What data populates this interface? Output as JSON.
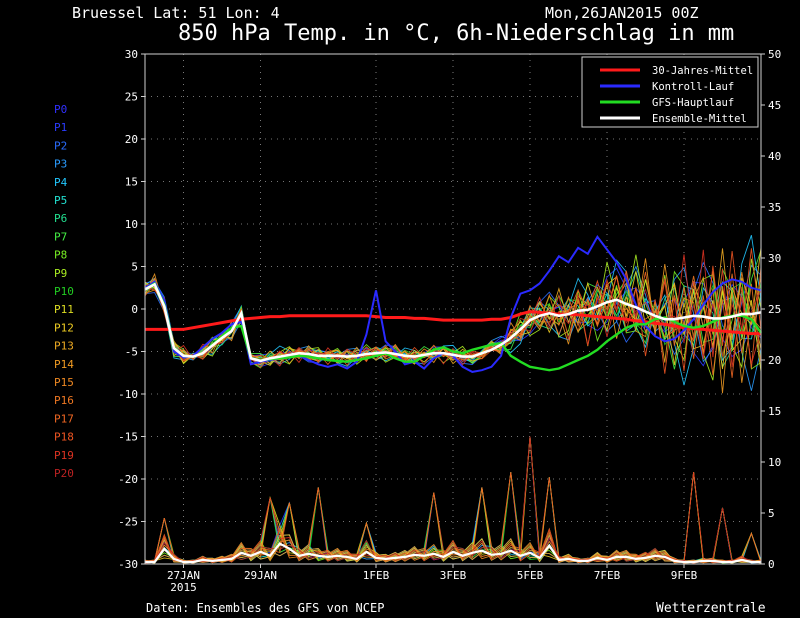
{
  "header": {
    "location": "Bruessel  Lat: 51 Lon: 4",
    "run": "Mon,26JAN2015 00Z",
    "title": "850 hPa Temp. in °C, 6h-Niederschlag in mm"
  },
  "footer": {
    "source": "Daten: Ensembles des GFS von NCEP",
    "brand": "Wetterzentrale"
  },
  "colors": {
    "background": "#000000",
    "grid": "#9a9a9a",
    "climatology": "#ff1a1a",
    "control": "#2a2aff",
    "operational": "#22dd22",
    "ensemble_mean": "#ffffff"
  },
  "chart_data": {
    "type": "line",
    "x_tick_labels": [
      "27JAN",
      "29JAN",
      "1FEB",
      "3FEB",
      "5FEB",
      "7FEB",
      "9FEB"
    ],
    "x_year_label": "2015",
    "x": [
      0,
      1,
      2,
      3,
      4,
      5,
      6,
      7,
      8,
      9,
      10,
      11,
      12,
      13,
      14,
      15,
      16,
      17,
      18,
      19,
      20,
      21,
      22,
      23,
      24,
      25,
      26,
      27,
      28,
      29,
      30,
      31,
      32,
      33,
      34,
      35,
      36,
      37,
      38,
      39,
      40,
      41,
      42,
      43,
      44,
      45,
      46,
      47,
      48,
      49,
      50,
      51,
      52,
      53,
      54,
      55,
      56,
      57,
      58,
      59,
      60,
      61,
      62,
      63,
      64
    ],
    "x_ticks": [
      4,
      12,
      24,
      32,
      40,
      48,
      56
    ],
    "xlim": [
      0,
      64
    ],
    "y_left": {
      "ticks": [
        30,
        25,
        20,
        15,
        10,
        5,
        0,
        -5,
        -10,
        -15,
        -20,
        -25,
        -30
      ],
      "ylim": [
        -30,
        30
      ],
      "unit": "°C"
    },
    "y_right": {
      "ticks": [
        50,
        45,
        40,
        35,
        30,
        25,
        20,
        15,
        10,
        5,
        0
      ],
      "ylim": [
        0,
        50
      ],
      "unit": "mm"
    },
    "grid": true,
    "legend_position": "top-right",
    "legend": [
      {
        "label": "30-Jahres-Mittel",
        "color_key": "climatology"
      },
      {
        "label": "Kontroll-Lauf",
        "color_key": "control"
      },
      {
        "label": "GFS-Hauptlauf",
        "color_key": "operational"
      },
      {
        "label": "Ensemble-Mittel",
        "color_key": "ensemble_mean"
      }
    ],
    "member_labels": [
      "P0",
      "P1",
      "P2",
      "P3",
      "P4",
      "P5",
      "P6",
      "P7",
      "P8",
      "P9",
      "P10",
      "P11",
      "P12",
      "P13",
      "P14",
      "P15",
      "P16",
      "P17",
      "P18",
      "P19",
      "P20"
    ],
    "member_colors": [
      "#3030ff",
      "#2a3cff",
      "#2a6cff",
      "#2a9cff",
      "#22c8ff",
      "#22e0d0",
      "#22e090",
      "#44ee44",
      "#77ee22",
      "#aaee22",
      "#22cc22",
      "#dddd22",
      "#eecc22",
      "#eeaa22",
      "#ee9922",
      "#ee8822",
      "#ee7722",
      "#ee6622",
      "#ee5522",
      "#dd3322",
      "#bb2222"
    ],
    "series": [
      {
        "name": "30-Jahres-Mittel",
        "color_key": "climatology",
        "values": [
          -2.4,
          -2.4,
          -2.4,
          -2.4,
          -2.4,
          -2.2,
          -2,
          -1.8,
          -1.6,
          -1.4,
          -1.2,
          -1.1,
          -1,
          -0.9,
          -0.9,
          -0.8,
          -0.8,
          -0.8,
          -0.8,
          -0.8,
          -0.8,
          -0.8,
          -0.8,
          -0.8,
          -0.9,
          -1,
          -1,
          -1,
          -1.1,
          -1.1,
          -1.2,
          -1.3,
          -1.3,
          -1.3,
          -1.3,
          -1.3,
          -1.2,
          -1.2,
          -1,
          -0.6,
          -0.3,
          -0.4,
          -0.5,
          -0.6,
          -0.6,
          -0.7,
          -0.8,
          -0.9,
          -1,
          -1.1,
          -1.2,
          -1.4,
          -1.5,
          -1.7,
          -1.8,
          -2,
          -2.2,
          -2.3,
          -2.4,
          -2.5,
          -2.6,
          -2.7,
          -2.8,
          -2.9,
          -2.9
        ]
      },
      {
        "name": "Kontroll-Lauf",
        "color_key": "control",
        "values": [
          2.5,
          3.2,
          1,
          -5,
          -5.7,
          -5.5,
          -4.5,
          -3.5,
          -2.8,
          -1.8,
          -1.5,
          -6.5,
          -6.2,
          -6,
          -5.8,
          -5.7,
          -5.5,
          -6,
          -6.5,
          -6.8,
          -6.5,
          -7,
          -6.2,
          -3,
          2.2,
          -3.8,
          -5,
          -6.5,
          -6.2,
          -7,
          -5.8,
          -5.2,
          -5.5,
          -6.8,
          -7.4,
          -7.2,
          -6.8,
          -5.5,
          -1,
          1.8,
          2.2,
          3,
          4.5,
          6.2,
          5.5,
          7.2,
          6.5,
          8.5,
          7,
          5.5,
          3.5,
          0.5,
          -2,
          -3.2,
          -3.8,
          -3.5,
          -2.5,
          -1.2,
          0.5,
          2,
          3,
          3.5,
          3.2,
          2.5,
          2.2
        ]
      },
      {
        "name": "GFS-Hauptlauf",
        "color_key": "operational",
        "values": [
          2.3,
          3,
          0.5,
          -4.5,
          -5.5,
          -5.6,
          -5.2,
          -4.2,
          -3.2,
          -2.2,
          -2,
          -5.8,
          -6,
          -5.9,
          -5.8,
          -5.7,
          -5.5,
          -5.6,
          -5.8,
          -6,
          -6.1,
          -6.2,
          -6,
          -5.8,
          -5.5,
          -5.2,
          -5.8,
          -6.2,
          -6.2,
          -5.5,
          -4.8,
          -4.5,
          -5,
          -5.2,
          -4.8,
          -4.5,
          -4.2,
          -4,
          -5.5,
          -6.2,
          -6.8,
          -7,
          -7.2,
          -7,
          -6.5,
          -6,
          -5.5,
          -4.8,
          -3.8,
          -3,
          -2.2,
          -1.8,
          -1.8,
          -1.2,
          -1,
          -1.5,
          -2,
          -2.2,
          -2,
          -1.5,
          -1,
          -0.8,
          -0.8,
          -1.2,
          -2.8
        ]
      },
      {
        "name": "Ensemble-Mittel",
        "color_key": "ensemble_mean",
        "values": [
          2.3,
          2.9,
          0.3,
          -4.6,
          -5.5,
          -5.6,
          -5.2,
          -4.3,
          -3.4,
          -2.6,
          -0.5,
          -5.8,
          -6.1,
          -5.8,
          -5.6,
          -5.4,
          -5.2,
          -5.3,
          -5.5,
          -5.5,
          -5.5,
          -5.6,
          -5.5,
          -5.3,
          -5.2,
          -5.1,
          -5.3,
          -5.5,
          -5.6,
          -5.4,
          -5.2,
          -5.2,
          -5.4,
          -5.6,
          -5.6,
          -5.2,
          -4.8,
          -4.2,
          -3.4,
          -2.4,
          -1.3,
          -0.8,
          -0.5,
          -0.8,
          -0.6,
          -0.2,
          -0.1,
          0.3,
          0.8,
          1.1,
          0.6,
          0.2,
          -0.3,
          -0.8,
          -1.2,
          -1.2,
          -1,
          -0.8,
          -0.9,
          -1.1,
          -1.1,
          -0.9,
          -0.6,
          -0.6,
          -0.4
        ]
      }
    ],
    "precipitation": {
      "axis": "right",
      "members_peak_mm": [
        {
          "x": 2,
          "value": 4.5
        },
        {
          "x": 13,
          "value": 6.5
        },
        {
          "x": 15,
          "value": 6
        },
        {
          "x": 18,
          "value": 7.5
        },
        {
          "x": 23,
          "value": 4
        },
        {
          "x": 30,
          "value": 7
        },
        {
          "x": 35,
          "value": 7.5
        },
        {
          "x": 38,
          "value": 9
        },
        {
          "x": 40,
          "value": 12.5
        },
        {
          "x": 42,
          "value": 8.5
        },
        {
          "x": 57,
          "value": 9
        },
        {
          "x": 60,
          "value": 5.5
        },
        {
          "x": 63,
          "value": 3
        }
      ],
      "ensemble_mean_mm": [
        0.2,
        0.2,
        1.5,
        0.5,
        0.2,
        0.2,
        0.4,
        0.3,
        0.4,
        0.5,
        1.1,
        0.8,
        1.2,
        0.8,
        2,
        1.5,
        0.8,
        1,
        0.8,
        0.7,
        0.8,
        0.7,
        0.5,
        1.2,
        0.6,
        0.5,
        0.6,
        0.7,
        0.9,
        0.8,
        1,
        0.7,
        1.2,
        0.8,
        1.1,
        1.3,
        0.9,
        1,
        1.3,
        0.8,
        1.1,
        0.6,
        1.8,
        0.4,
        0.5,
        0.3,
        0.3,
        0.6,
        0.4,
        0.7,
        0.7,
        0.5,
        0.6,
        0.8,
        0.7,
        0.3,
        0.2,
        0.2,
        0.3,
        0.3,
        0.2,
        0.2,
        0.4,
        0.2,
        0.2
      ]
    }
  }
}
